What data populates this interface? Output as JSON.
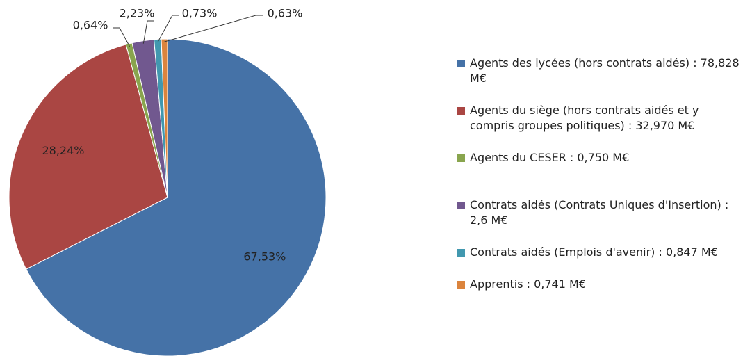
{
  "chart_data": {
    "type": "pie",
    "categories": [
      "Agents des lycées (hors contrats aidés) : 78,828 M€",
      "Agents du siège (hors contrats aidés et y compris groupes politiques) : 32,970 M€",
      "Agents du CESER : 0,750 M€",
      "Contrats aidés (Contrats Uniques d'Insertion) : 2,6 M€",
      "Contrats aidés (Emplois d'avenir) : 0,847 M€",
      "Apprentis : 0,741 M€"
    ],
    "values": [
      67.53,
      28.24,
      0.64,
      2.23,
      0.73,
      0.63
    ],
    "value_labels": [
      "67,53%",
      "28,24%",
      "0,64%",
      "2,23%",
      "0,73%",
      "0,63%"
    ],
    "colors": [
      "#4572a7",
      "#aa4643",
      "#89a54e",
      "#71588f",
      "#4198af",
      "#db843d"
    ]
  }
}
